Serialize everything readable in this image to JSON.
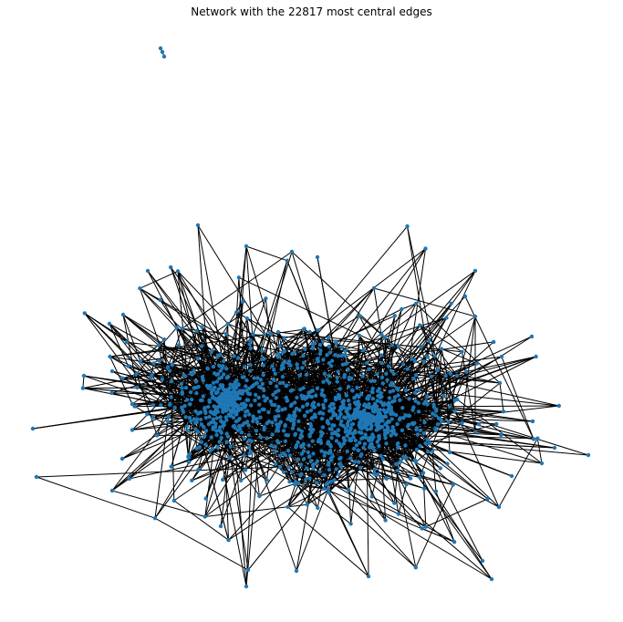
{
  "title": "Network with the 22817 most central edges",
  "colors": {
    "node": "#1f77b4",
    "edge": "#000000",
    "background": "#ffffff"
  },
  "chart_data": {
    "type": "network",
    "title": "Network with the 22817 most central edges",
    "edge_count": 22817,
    "axes_visible": false,
    "grid": false,
    "legend": "none"
  }
}
